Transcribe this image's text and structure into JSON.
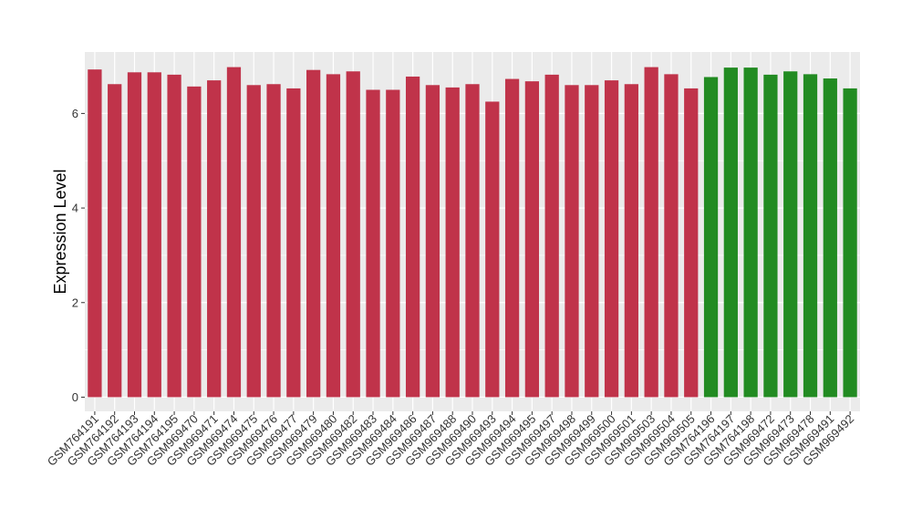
{
  "chart_data": {
    "type": "bar",
    "ylabel": "Expression Level",
    "xlabel": "",
    "ylim": [
      -0.3,
      7.3
    ],
    "yticks": [
      0,
      2,
      4,
      6
    ],
    "grid": true,
    "colors": {
      "group_a": "#c0334a",
      "group_b": "#228b22",
      "panel": "#ebebeb",
      "gridline": "#ffffff"
    },
    "categories": [
      "GSM764191",
      "GSM764192",
      "GSM764193",
      "GSM764194",
      "GSM764195",
      "GSM969470",
      "GSM969471",
      "GSM969474",
      "GSM969475",
      "GSM969476",
      "GSM969477",
      "GSM969479",
      "GSM969480",
      "GSM969482",
      "GSM969483",
      "GSM969484",
      "GSM969486",
      "GSM969487",
      "GSM969488",
      "GSM969490",
      "GSM969493",
      "GSM969494",
      "GSM969495",
      "GSM969497",
      "GSM969498",
      "GSM969499",
      "GSM969500",
      "GSM969501",
      "GSM969503",
      "GSM969504",
      "GSM969505",
      "GSM764196",
      "GSM764197",
      "GSM764198",
      "GSM969472",
      "GSM969473",
      "GSM969478",
      "GSM969491",
      "GSM969492"
    ],
    "values": [
      6.93,
      6.62,
      6.87,
      6.87,
      6.82,
      6.57,
      6.7,
      6.98,
      6.6,
      6.62,
      6.53,
      6.92,
      6.83,
      6.89,
      6.5,
      6.5,
      6.78,
      6.6,
      6.55,
      6.62,
      6.25,
      6.73,
      6.68,
      6.82,
      6.6,
      6.6,
      6.7,
      6.62,
      6.98,
      6.83,
      6.53,
      6.77,
      6.97,
      6.97,
      6.82,
      6.89,
      6.83,
      6.74,
      6.53
    ],
    "groups": [
      "a",
      "a",
      "a",
      "a",
      "a",
      "a",
      "a",
      "a",
      "a",
      "a",
      "a",
      "a",
      "a",
      "a",
      "a",
      "a",
      "a",
      "a",
      "a",
      "a",
      "a",
      "a",
      "a",
      "a",
      "a",
      "a",
      "a",
      "a",
      "a",
      "a",
      "a",
      "b",
      "b",
      "b",
      "b",
      "b",
      "b",
      "b",
      "b"
    ]
  }
}
